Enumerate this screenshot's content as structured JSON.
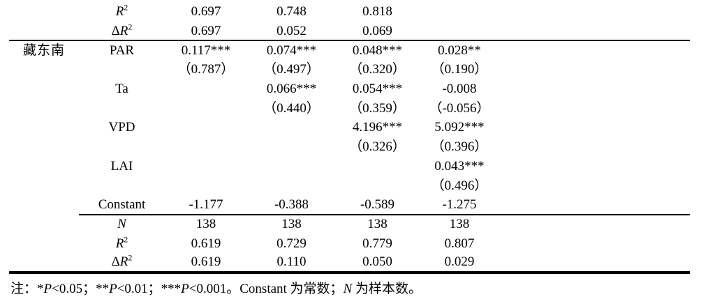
{
  "colors": {
    "background": "#ffffff",
    "text": "#000000",
    "rule": "#000000"
  },
  "table": {
    "region_group_label": "藏东南",
    "model_value_columns": 4,
    "rows": [
      {
        "group": "",
        "variable": {
          "italic": "R",
          "sup": "2"
        },
        "values": [
          "0.697",
          "0.748",
          "0.818",
          ""
        ],
        "rule": "none"
      },
      {
        "group": "",
        "variable": {
          "prefix": "Δ",
          "italic": "R",
          "sup": "2"
        },
        "values": [
          "0.697",
          "0.052",
          "0.069",
          ""
        ],
        "rule": "none"
      },
      {
        "group": "藏东南",
        "variable": {
          "text": "PAR"
        },
        "values": [
          "0.117***",
          "0.074***",
          "0.048***",
          "0.028**"
        ],
        "rule": "full"
      },
      {
        "group": "",
        "variable": null,
        "values": [
          "（0.787）",
          "（0.497）",
          "（0.320）",
          "（0.190）"
        ],
        "rule": "none"
      },
      {
        "group": "",
        "variable": {
          "text": "Ta"
        },
        "values": [
          "",
          "0.066***",
          "0.054***",
          "-0.008"
        ],
        "rule": "none"
      },
      {
        "group": "",
        "variable": null,
        "values": [
          "",
          "（0.440）",
          "（0.359）",
          "（-0.056）"
        ],
        "rule": "none"
      },
      {
        "group": "",
        "variable": {
          "text": "VPD"
        },
        "values": [
          "",
          "",
          "4.196***",
          "5.092***"
        ],
        "rule": "none"
      },
      {
        "group": "",
        "variable": null,
        "values": [
          "",
          "",
          "（0.326）",
          "（0.396）"
        ],
        "rule": "none"
      },
      {
        "group": "",
        "variable": {
          "text": "LAI"
        },
        "values": [
          "",
          "",
          "",
          "0.043***"
        ],
        "rule": "none"
      },
      {
        "group": "",
        "variable": null,
        "values": [
          "",
          "",
          "",
          "（0.496）"
        ],
        "rule": "none"
      },
      {
        "group": "",
        "variable": {
          "text": "Constant"
        },
        "values": [
          "-1.177",
          "-0.388",
          "-0.589",
          "-1.275"
        ],
        "rule": "none"
      },
      {
        "group": "",
        "variable": {
          "italic": "N"
        },
        "values": [
          "138",
          "138",
          "138",
          "138"
        ],
        "rule": "partial"
      },
      {
        "group": "",
        "variable": {
          "italic": "R",
          "sup": "2"
        },
        "values": [
          "0.619",
          "0.729",
          "0.779",
          "0.807"
        ],
        "rule": "none"
      },
      {
        "group": "",
        "variable": {
          "prefix": "Δ",
          "italic": "R",
          "sup": "2"
        },
        "values": [
          "0.619",
          "0.110",
          "0.050",
          "0.029"
        ],
        "rule": "none"
      }
    ]
  },
  "note": {
    "segments": [
      {
        "text": "注：*"
      },
      {
        "text": "P",
        "italic": true
      },
      {
        "text": "<0.05；**"
      },
      {
        "text": "P",
        "italic": true
      },
      {
        "text": "<0.01；***"
      },
      {
        "text": "P",
        "italic": true
      },
      {
        "text": "<0.001。Constant 为常数；"
      },
      {
        "text": "N",
        "italic": true
      },
      {
        "text": " 为样本数。"
      }
    ]
  }
}
